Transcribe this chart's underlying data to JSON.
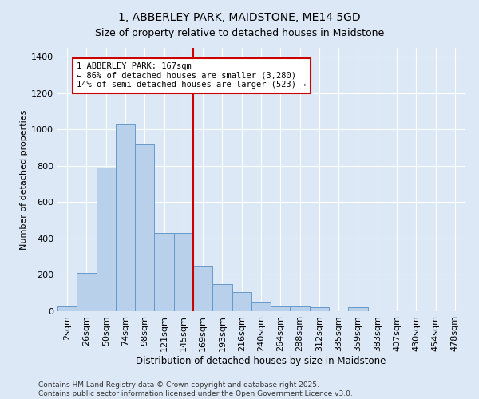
{
  "title": "1, ABBERLEY PARK, MAIDSTONE, ME14 5GD",
  "subtitle": "Size of property relative to detached houses in Maidstone",
  "xlabel": "Distribution of detached houses by size in Maidstone",
  "ylabel": "Number of detached properties",
  "categories": [
    "2sqm",
    "26sqm",
    "50sqm",
    "74sqm",
    "98sqm",
    "121sqm",
    "145sqm",
    "169sqm",
    "193sqm",
    "216sqm",
    "240sqm",
    "264sqm",
    "288sqm",
    "312sqm",
    "335sqm",
    "359sqm",
    "383sqm",
    "407sqm",
    "430sqm",
    "454sqm",
    "478sqm"
  ],
  "values": [
    25,
    210,
    790,
    1030,
    920,
    430,
    430,
    250,
    150,
    105,
    50,
    25,
    25,
    20,
    0,
    20,
    0,
    0,
    0,
    0,
    0
  ],
  "bar_color": "#b8d0ea",
  "bar_edge_color": "#6699cc",
  "vline_color": "#cc0000",
  "annotation_title": "1 ABBERLEY PARK: 167sqm",
  "annotation_line1": "← 86% of detached houses are smaller (3,280)",
  "annotation_line2": "14% of semi-detached houses are larger (523) →",
  "ylim": [
    0,
    1450
  ],
  "yticks": [
    0,
    200,
    400,
    600,
    800,
    1000,
    1200,
    1400
  ],
  "background_color": "#dce8f5",
  "plot_background_color": "#dce8f5",
  "grid_color": "#ffffff",
  "footer_line1": "Contains HM Land Registry data © Crown copyright and database right 2025.",
  "footer_line2": "Contains public sector information licensed under the Open Government Licence v3.0.",
  "title_fontsize": 10,
  "subtitle_fontsize": 9,
  "xlabel_fontsize": 8.5,
  "ylabel_fontsize": 8,
  "tick_fontsize": 8,
  "footer_fontsize": 6.5
}
